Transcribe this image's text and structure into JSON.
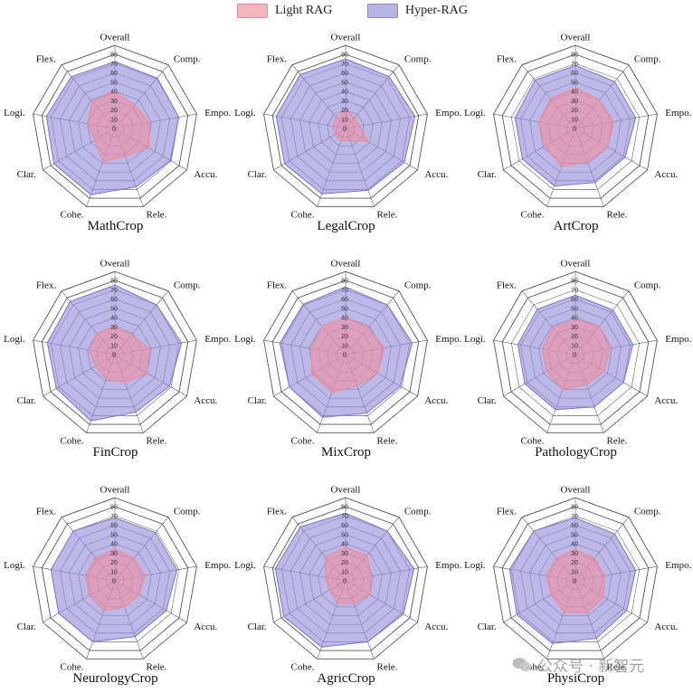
{
  "legend": {
    "items": [
      {
        "label": "Light RAG",
        "fill": "#f4b6bd",
        "stroke": "#e88a96"
      },
      {
        "label": "Hyper-RAG",
        "fill": "#b9b4e6",
        "stroke": "#8c84d2"
      }
    ]
  },
  "watermark": "公众号 · 新智元",
  "colors": {
    "light_rag_fill": "rgba(244,140,155,0.55)",
    "light_rag_stroke": "#e88a96",
    "hyper_rag_fill": "rgba(150,140,220,0.62)",
    "hyper_rag_stroke": "#7d74c9",
    "grid": "#555555"
  },
  "chart_data": [
    {
      "type": "radar",
      "title": "MathCrop",
      "axes": [
        "Overall",
        "Comp.",
        "Empo.",
        "Accu.",
        "Rele.",
        "Cohe.",
        "Clar.",
        "Logi.",
        "Flex."
      ],
      "ticks": [
        0,
        10,
        20,
        30,
        40,
        50,
        60,
        70,
        80
      ],
      "rlim": [
        0,
        80
      ],
      "series": [
        {
          "name": "Light RAG",
          "values": [
            40,
            33,
            38,
            42,
            32,
            38,
            25,
            30,
            38
          ]
        },
        {
          "name": "Hyper-RAG",
          "values": [
            72,
            71,
            70,
            69,
            67,
            76,
            76,
            75,
            73
          ]
        }
      ]
    },
    {
      "type": "radar",
      "title": "LegalCrop",
      "axes": [
        "Overall",
        "Comp.",
        "Empo.",
        "Accu.",
        "Rele.",
        "Cohe.",
        "Clar.",
        "Logi.",
        "Flex."
      ],
      "ticks": [
        0,
        10,
        20,
        30,
        40,
        50,
        60,
        70,
        80
      ],
      "rlim": [
        0,
        80
      ],
      "series": [
        {
          "name": "Light RAG",
          "values": [
            21,
            15,
            15,
            28,
            14,
            14,
            13,
            14,
            16
          ]
        },
        {
          "name": "Hyper-RAG",
          "values": [
            75,
            73,
            76,
            73,
            71,
            75,
            76,
            76,
            76
          ]
        }
      ]
    },
    {
      "type": "radar",
      "title": "ArtCrop",
      "axes": [
        "Overall",
        "Comp.",
        "Empo.",
        "Accu.",
        "Rele.",
        "Cohe.",
        "Clar.",
        "Logi.",
        "Flex."
      ],
      "ticks": [
        0,
        10,
        20,
        30,
        40,
        50,
        60,
        70,
        80
      ],
      "rlim": [
        0,
        80
      ],
      "series": [
        {
          "name": "Light RAG",
          "values": [
            44,
            40,
            42,
            40,
            38,
            44,
            38,
            40,
            42
          ]
        },
        {
          "name": "Hyper-RAG",
          "values": [
            68,
            66,
            66,
            62,
            62,
            66,
            66,
            66,
            68
          ]
        }
      ]
    },
    {
      "type": "radar",
      "title": "FinCrop",
      "axes": [
        "Overall",
        "Comp.",
        "Empo.",
        "Accu.",
        "Rele.",
        "Cohe.",
        "Clar.",
        "Logi.",
        "Flex."
      ],
      "ticks": [
        0,
        10,
        20,
        30,
        40,
        50,
        60,
        70,
        80
      ],
      "rlim": [
        0,
        80
      ],
      "series": [
        {
          "name": "Light RAG",
          "values": [
            31,
            28,
            38,
            40,
            32,
            28,
            24,
            28,
            30
          ]
        },
        {
          "name": "Hyper-RAG",
          "values": [
            75,
            70,
            73,
            68,
            66,
            76,
            73,
            74,
            75
          ]
        }
      ]
    },
    {
      "type": "radar",
      "title": "MixCrop",
      "axes": [
        "Overall",
        "Comp.",
        "Empo.",
        "Accu.",
        "Rele.",
        "Cohe.",
        "Clar.",
        "Logi.",
        "Flex."
      ],
      "ticks": [
        0,
        10,
        20,
        30,
        40,
        50,
        60,
        70,
        80
      ],
      "rlim": [
        0,
        80
      ],
      "series": [
        {
          "name": "Light RAG",
          "values": [
            40,
            38,
            42,
            40,
            36,
            43,
            42,
            38,
            40
          ]
        },
        {
          "name": "Hyper-RAG",
          "values": [
            73,
            70,
            73,
            68,
            67,
            72,
            70,
            72,
            71
          ]
        }
      ]
    },
    {
      "type": "radar",
      "title": "PathologyCrop",
      "axes": [
        "Overall",
        "Comp.",
        "Empo.",
        "Accu.",
        "Rele.",
        "Cohe.",
        "Clar.",
        "Logi.",
        "Flex."
      ],
      "ticks": [
        0,
        10,
        20,
        30,
        40,
        50,
        60,
        70,
        80
      ],
      "rlim": [
        0,
        80
      ],
      "series": [
        {
          "name": "Light RAG",
          "values": [
            38,
            40,
            38,
            36,
            34,
            40,
            36,
            36,
            38
          ]
        },
        {
          "name": "Hyper-RAG",
          "values": [
            64,
            63,
            63,
            60,
            60,
            63,
            63,
            63,
            64
          ]
        }
      ]
    },
    {
      "type": "radar",
      "title": "NeurologyCrop",
      "axes": [
        "Overall",
        "Comp.",
        "Empo.",
        "Accu.",
        "Rele.",
        "Cohe.",
        "Clar.",
        "Logi.",
        "Flex."
      ],
      "ticks": [
        0,
        10,
        20,
        30,
        40,
        50,
        60,
        70,
        80
      ],
      "rlim": [
        0,
        80
      ],
      "series": [
        {
          "name": "Light RAG",
          "values": [
            34,
            32,
            33,
            30,
            30,
            34,
            32,
            32,
            33
          ]
        },
        {
          "name": "Hyper-RAG",
          "values": [
            68,
            68,
            68,
            64,
            64,
            70,
            70,
            70,
            70
          ]
        }
      ]
    },
    {
      "type": "radar",
      "title": "AgricCrop",
      "axes": [
        "Overall",
        "Comp.",
        "Empo.",
        "Accu.",
        "Rele.",
        "Cohe.",
        "Clar.",
        "Logi.",
        "Flex."
      ],
      "ticks": [
        0,
        10,
        20,
        30,
        40,
        50,
        60,
        70,
        80
      ],
      "rlim": [
        0,
        80
      ],
      "series": [
        {
          "name": "Light RAG",
          "values": [
            36,
            36,
            28,
            30,
            26,
            26,
            20,
            22,
            34
          ]
        },
        {
          "name": "Hyper-RAG",
          "values": [
            73,
            70,
            75,
            72,
            70,
            76,
            77,
            77,
            76
          ]
        }
      ]
    },
    {
      "type": "radar",
      "title": "PhysiCrop",
      "axes": [
        "Overall",
        "Comp.",
        "Empo.",
        "Accu.",
        "Rele.",
        "Cohe.",
        "Clar.",
        "Logi.",
        "Flex."
      ],
      "ticks": [
        0,
        10,
        20,
        30,
        40,
        50,
        60,
        70,
        80
      ],
      "rlim": [
        0,
        80
      ],
      "series": [
        {
          "name": "Light RAG",
          "values": [
            34,
            32,
            32,
            35,
            37,
            36,
            30,
            32,
            32
          ]
        },
        {
          "name": "Hyper-RAG",
          "values": [
            68,
            66,
            66,
            64,
            66,
            72,
            73,
            72,
            70
          ]
        }
      ]
    }
  ]
}
